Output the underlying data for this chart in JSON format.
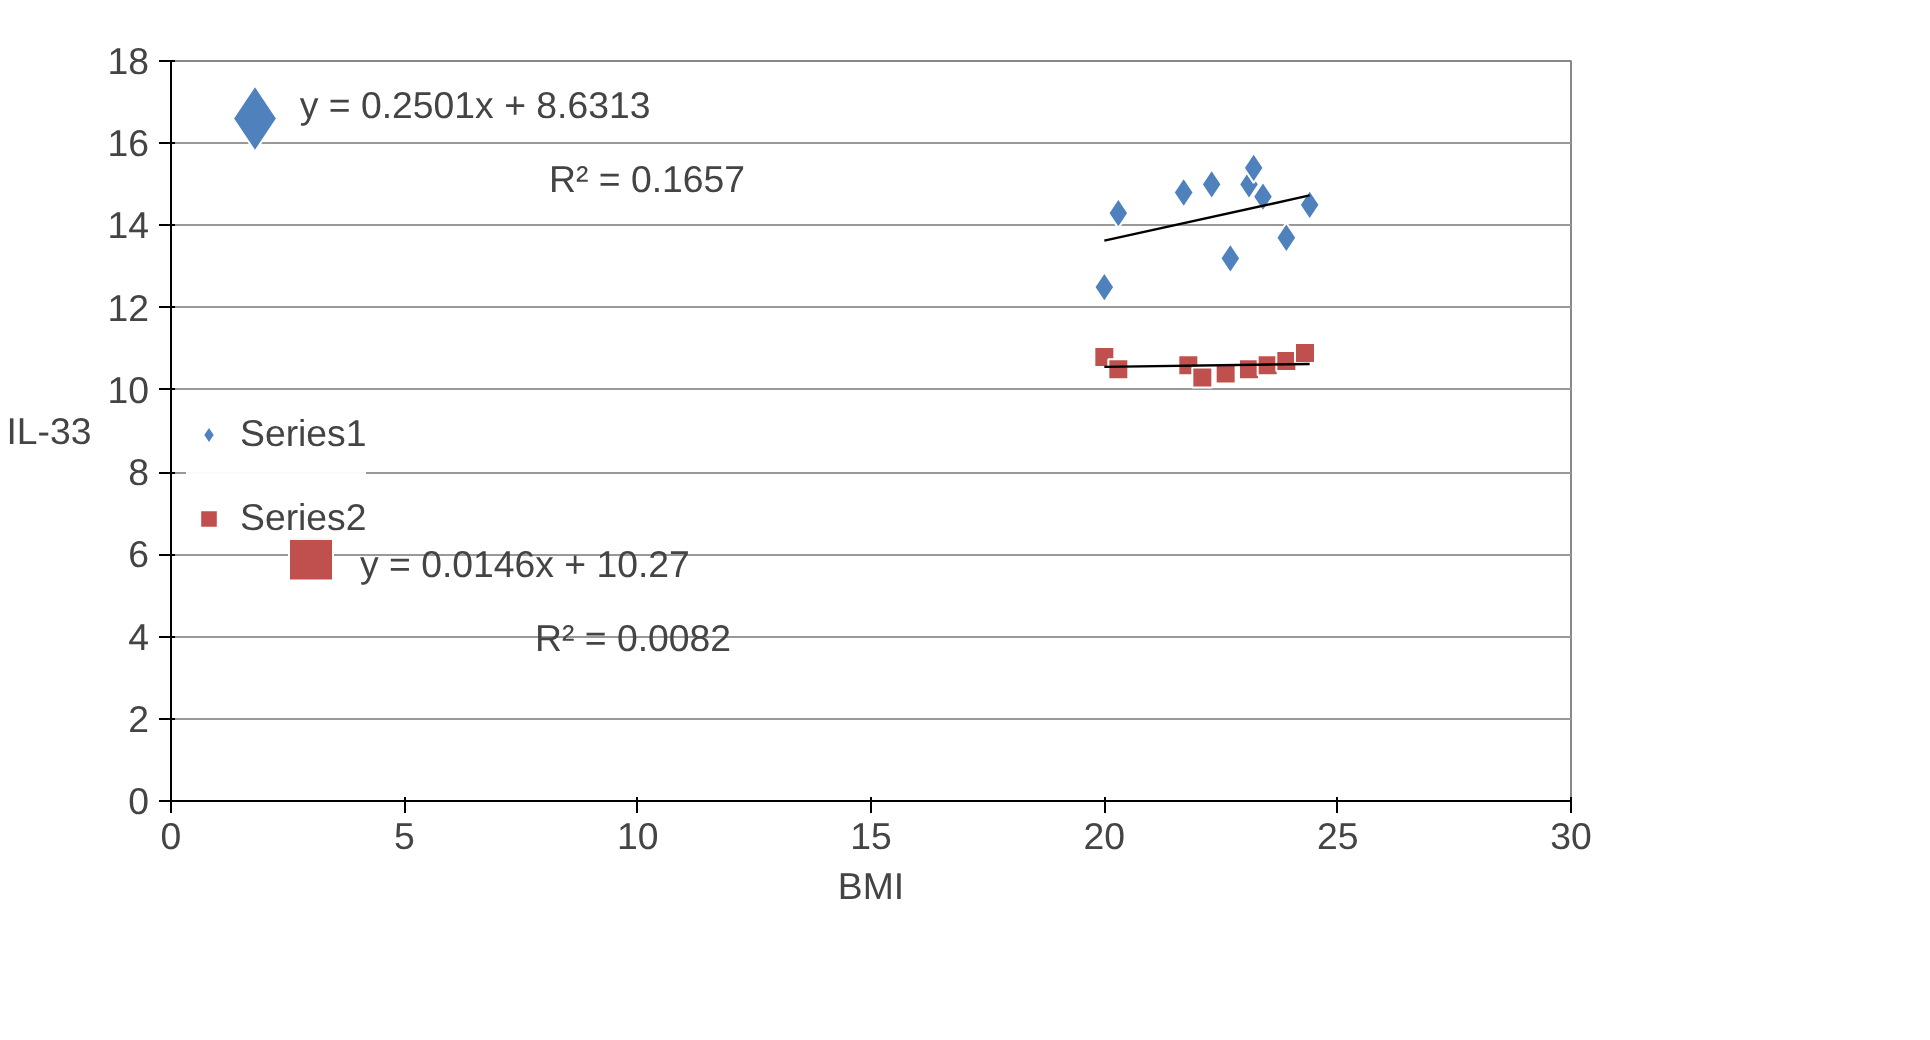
{
  "chart_data": {
    "type": "scatter",
    "xlabel": "BMI",
    "ylabel": "IL-33",
    "xlim": [
      0,
      30
    ],
    "ylim": [
      0,
      18
    ],
    "xticks": [
      0,
      5,
      10,
      15,
      20,
      25,
      30
    ],
    "yticks": [
      0,
      2,
      4,
      6,
      8,
      10,
      12,
      14,
      16,
      18
    ],
    "grid": "y",
    "legend": "left",
    "series": [
      {
        "name": "Series1",
        "color": "#4f81bd",
        "marker": "diamond",
        "x": [
          20.0,
          20.3,
          21.7,
          22.3,
          22.7,
          23.1,
          23.2,
          23.4,
          23.9,
          24.4
        ],
        "values": [
          12.5,
          14.3,
          14.8,
          15.0,
          13.2,
          15.0,
          15.4,
          14.7,
          13.7,
          14.5
        ]
      },
      {
        "name": "Series2",
        "color": "#c0504d",
        "marker": "square",
        "x": [
          20.0,
          20.3,
          21.8,
          22.1,
          22.6,
          23.1,
          23.5,
          23.9,
          24.3
        ],
        "values": [
          10.8,
          10.5,
          10.6,
          10.3,
          10.4,
          10.5,
          10.6,
          10.7,
          10.9
        ]
      },
      {
        "type": "line",
        "color": "#000000",
        "x": [
          20.0,
          24.4
        ],
        "values": [
          13.63,
          14.73
        ]
      },
      {
        "type": "line",
        "color": "#000000",
        "x": [
          20.0,
          24.4
        ],
        "values": [
          10.56,
          10.63
        ]
      },
      {
        "color": "#4f81bd",
        "marker": "diamond",
        "x": [
          1.8
        ],
        "values": [
          16.6
        ]
      },
      {
        "color": "#c0504d",
        "marker": "square",
        "x": [
          3.0
        ],
        "values": [
          5.9
        ]
      }
    ],
    "annotations": [
      "y = 0.2501x + 8.6313",
      "R² = 0.1657",
      "y = 0.0146x + 10.27",
      "R² = 0.0082"
    ]
  }
}
